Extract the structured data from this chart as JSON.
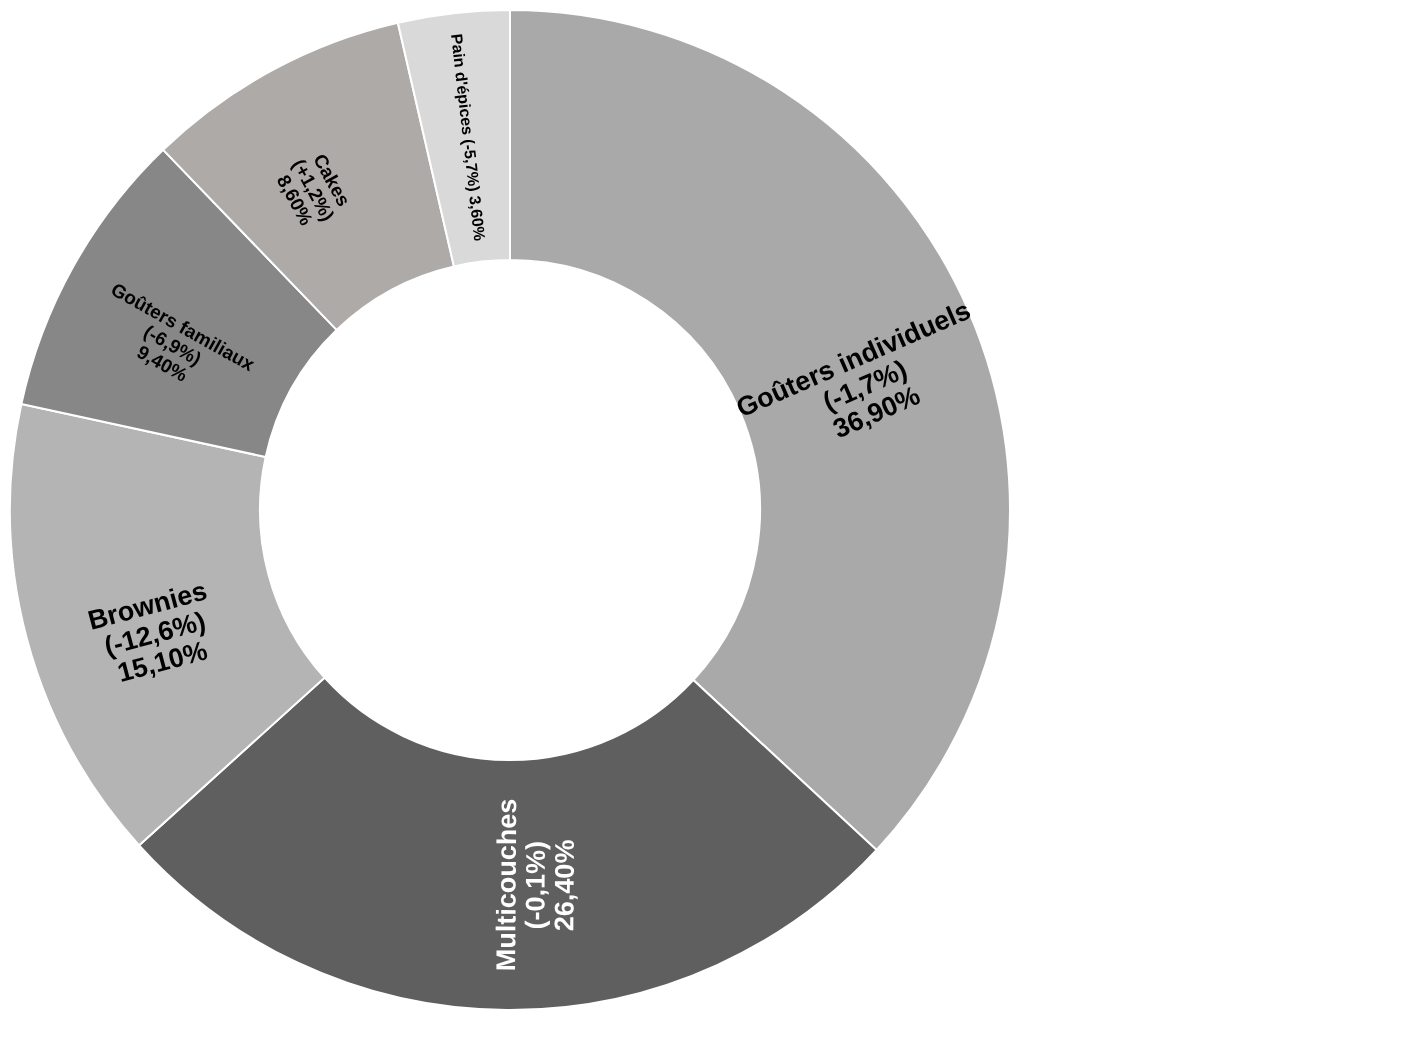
{
  "chart_data": {
    "type": "donut",
    "categories": [
      "Goûters individuels (-1,7%)",
      "Multicouches (-0,1%)",
      "Brownies (-12,6%)",
      "Goûters familiaux (-6,9%)",
      "Cakes (+1,2%)",
      "Pain d'épices (-5,7%)"
    ],
    "values": [
      36.9,
      26.4,
      15.1,
      9.4,
      8.6,
      3.6
    ],
    "value_labels": [
      "36,90%",
      "26,40%",
      "15,10%",
      "9,40%",
      "8,60%",
      "3,60%"
    ],
    "colors": [
      "#a9a9a9",
      "#5f5f5f",
      "#b4b4b4",
      "#878787",
      "#aeaaa8",
      "#d9d9d9"
    ],
    "legend": false
  }
}
